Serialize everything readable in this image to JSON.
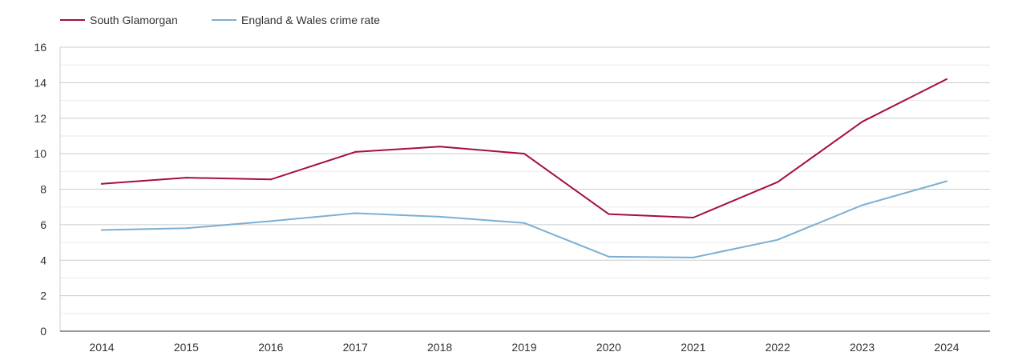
{
  "chart_data": {
    "type": "line",
    "title": "",
    "xlabel": "",
    "ylabel": "",
    "x": [
      2014,
      2015,
      2016,
      2017,
      2018,
      2019,
      2020,
      2021,
      2022,
      2023,
      2024
    ],
    "x_tick_labels": [
      "2014",
      "2015",
      "2016",
      "2017",
      "2018",
      "2019",
      "2020",
      "2021",
      "2022",
      "2023",
      "2024"
    ],
    "ylim": [
      0,
      16
    ],
    "y_ticks": [
      0,
      2,
      4,
      6,
      8,
      10,
      12,
      14,
      16
    ],
    "y_tick_labels": [
      "0",
      "2",
      "4",
      "6",
      "8",
      "10",
      "12",
      "14",
      "16"
    ],
    "grid": true,
    "minor_grid": true,
    "legend_position": "top-left",
    "series": [
      {
        "name": "South Glamorgan",
        "color": "#a50f3c",
        "values": [
          8.3,
          8.65,
          8.55,
          10.1,
          10.4,
          10.0,
          6.6,
          6.4,
          8.4,
          11.8,
          14.2
        ]
      },
      {
        "name": "England & Wales crime rate",
        "color": "#7bafd4",
        "values": [
          5.7,
          5.8,
          6.2,
          6.65,
          6.45,
          6.1,
          4.2,
          4.15,
          5.15,
          7.1,
          8.45
        ]
      }
    ]
  }
}
